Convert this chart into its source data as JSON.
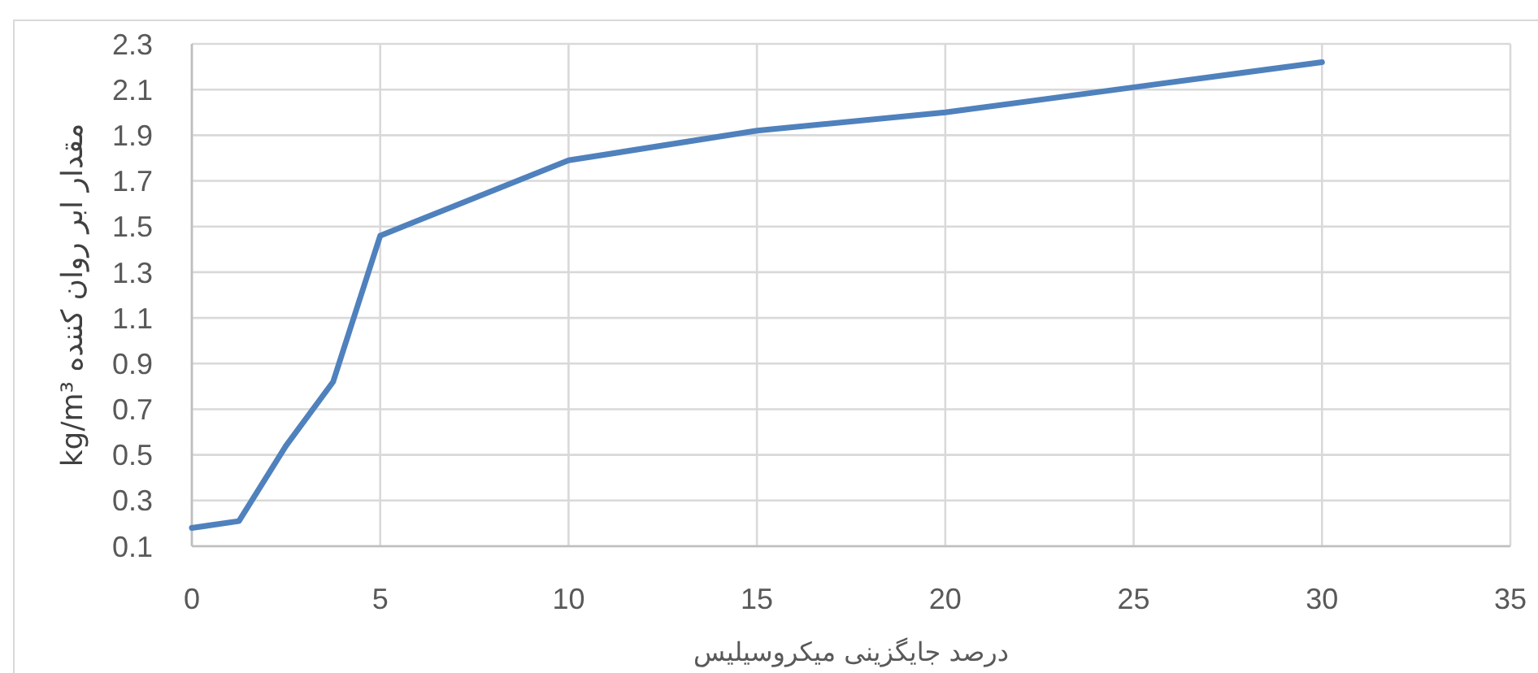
{
  "chart_data": {
    "type": "line",
    "xlabel": "درصد جایگزینی میکروسیلیس",
    "ylabel": "مقدار ابر روان کننده kg/m³",
    "x": [
      0,
      1.25,
      2.5,
      3.75,
      5,
      10,
      15,
      20,
      25,
      30
    ],
    "series": [
      {
        "color": "#4f81bd",
        "values": [
          0.18,
          0.21,
          0.54,
          0.82,
          1.46,
          1.79,
          1.92,
          2.0,
          2.11,
          2.22
        ]
      }
    ],
    "xlim": [
      0,
      35
    ],
    "xticks": [
      0,
      5,
      10,
      15,
      20,
      25,
      30,
      35
    ],
    "ylim": [
      0.1,
      2.3
    ],
    "yticks": [
      0.1,
      0.3,
      0.5,
      0.7,
      0.9,
      1.1,
      1.3,
      1.5,
      1.7,
      1.9,
      2.1,
      2.3
    ],
    "grid": true,
    "marker": "none",
    "line_style": "solid"
  }
}
